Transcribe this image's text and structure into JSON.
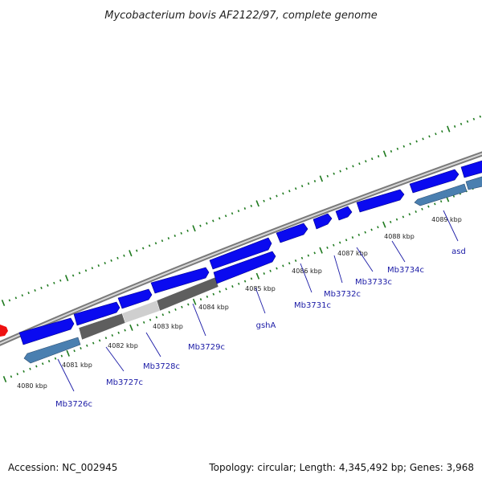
{
  "title": "Mycobacterium bovis AF2122/97, complete genome",
  "footer": {
    "accession": "Accession: NC_002945",
    "stats": "Topology: circular; Length: 4,345,492 bp; Genes: 3,968"
  },
  "colors": {
    "background": "#ffffff",
    "backbone": "#8c8c8c",
    "forward_cds": "#0a0af0",
    "reverse_cds": "#4a7fb0",
    "gc_skew_dark": "#5e5e5e",
    "gc_skew_light": "#cfcfcf",
    "ticks": "#1f7a1f",
    "marker": "#ee1111",
    "labels": "#1a1aa6"
  },
  "kbp_ticks": [
    "4080 kbp",
    "4081 kbp",
    "4082 kbp",
    "4083 kbp",
    "4084 kbp",
    "4085 kbp",
    "4086 kbp",
    "4087 kbp",
    "4088 kbp",
    "4089 kbp"
  ],
  "gene_labels": [
    "Mb3726c",
    "Mb3727c",
    "Mb3728c",
    "Mb3729c",
    "gshA",
    "Mb3731c",
    "Mb3732c",
    "Mb3733c",
    "Mb3734c",
    "asd"
  ]
}
